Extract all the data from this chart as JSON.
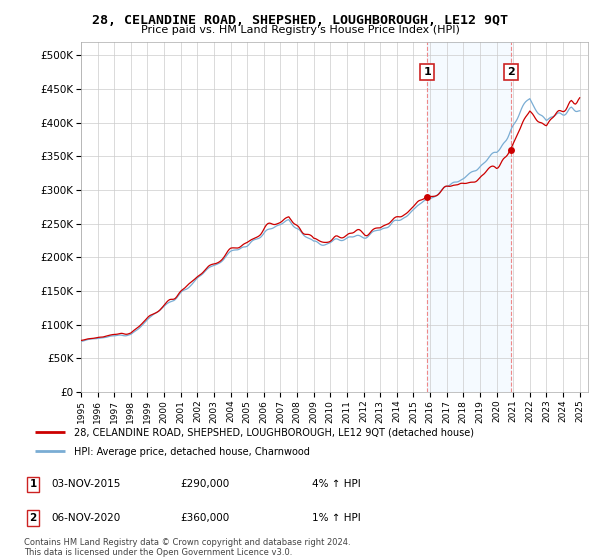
{
  "title": "28, CELANDINE ROAD, SHEPSHED, LOUGHBOROUGH, LE12 9QT",
  "subtitle": "Price paid vs. HM Land Registry's House Price Index (HPI)",
  "legend_line1": "28, CELANDINE ROAD, SHEPSHED, LOUGHBOROUGH, LE12 9QT (detached house)",
  "legend_line2": "HPI: Average price, detached house, Charnwood",
  "annotation1_label": "1",
  "annotation1_date": "03-NOV-2015",
  "annotation1_price": "£290,000",
  "annotation1_hpi": "4% ↑ HPI",
  "annotation2_label": "2",
  "annotation2_date": "06-NOV-2020",
  "annotation2_price": "£360,000",
  "annotation2_hpi": "1% ↑ HPI",
  "footnote": "Contains HM Land Registry data © Crown copyright and database right 2024.\nThis data is licensed under the Open Government Licence v3.0.",
  "hpi_color": "#7aadd4",
  "price_color": "#cc0000",
  "vline_color": "#ee8888",
  "shaded_color": "#ddeeff",
  "background_color": "#ffffff",
  "grid_color": "#cccccc",
  "ylim": [
    0,
    520000
  ],
  "yticks": [
    0,
    50000,
    100000,
    150000,
    200000,
    250000,
    300000,
    350000,
    400000,
    450000,
    500000
  ],
  "ytick_labels": [
    "£0",
    "£50K",
    "£100K",
    "£150K",
    "£200K",
    "£250K",
    "£300K",
    "£350K",
    "£400K",
    "£450K",
    "£500K"
  ],
  "sale1_x": 2015.84,
  "sale1_y": 290000,
  "sale2_x": 2020.84,
  "sale2_y": 360000,
  "xlim_left": 1995.0,
  "xlim_right": 2025.5
}
